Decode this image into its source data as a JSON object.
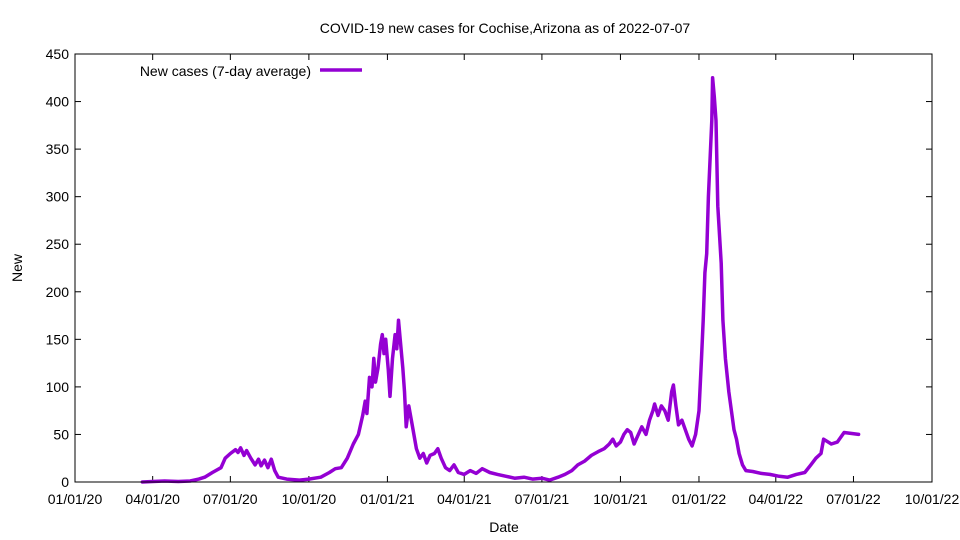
{
  "chart_data": {
    "type": "line",
    "title": "COVID-19 new cases for Cochise,Arizona as of 2022-07-07",
    "xlabel": "Date",
    "ylabel": "New",
    "xlim": [
      "2020-01-01",
      "2022-10-01"
    ],
    "ylim": [
      0,
      450
    ],
    "x_ticks": [
      "01/01/20",
      "04/01/20",
      "07/01/20",
      "10/01/20",
      "01/01/21",
      "04/01/21",
      "07/01/21",
      "10/01/21",
      "01/01/22",
      "04/01/22",
      "07/01/22",
      "10/01/22"
    ],
    "x_tick_dates": [
      "2020-01-01",
      "2020-04-01",
      "2020-07-01",
      "2020-10-01",
      "2021-01-01",
      "2021-04-01",
      "2021-07-01",
      "2021-10-01",
      "2022-01-01",
      "2022-04-01",
      "2022-07-01",
      "2022-10-01"
    ],
    "y_ticks": [
      "0",
      "50",
      "100",
      "150",
      "200",
      "250",
      "300",
      "350",
      "400",
      "450"
    ],
    "grid": false,
    "legend_position": "top-left",
    "series": [
      {
        "name": "New cases (7-day average)",
        "color": "#9400d3",
        "points": [
          [
            "2020-03-20",
            0
          ],
          [
            "2020-04-01",
            0.5
          ],
          [
            "2020-04-15",
            1
          ],
          [
            "2020-05-01",
            0.5
          ],
          [
            "2020-05-15",
            1
          ],
          [
            "2020-05-25",
            3
          ],
          [
            "2020-06-01",
            5
          ],
          [
            "2020-06-10",
            10
          ],
          [
            "2020-06-20",
            15
          ],
          [
            "2020-06-25",
            25
          ],
          [
            "2020-07-01",
            30
          ],
          [
            "2020-07-07",
            34
          ],
          [
            "2020-07-10",
            31
          ],
          [
            "2020-07-13",
            36
          ],
          [
            "2020-07-17",
            28
          ],
          [
            "2020-07-20",
            33
          ],
          [
            "2020-07-25",
            25
          ],
          [
            "2020-07-30",
            18
          ],
          [
            "2020-08-03",
            24
          ],
          [
            "2020-08-06",
            17
          ],
          [
            "2020-08-10",
            23
          ],
          [
            "2020-08-14",
            15
          ],
          [
            "2020-08-18",
            24
          ],
          [
            "2020-08-22",
            12
          ],
          [
            "2020-08-26",
            5
          ],
          [
            "2020-09-05",
            3
          ],
          [
            "2020-09-20",
            2
          ],
          [
            "2020-10-01",
            3
          ],
          [
            "2020-10-15",
            5
          ],
          [
            "2020-10-25",
            10
          ],
          [
            "2020-11-01",
            14
          ],
          [
            "2020-11-08",
            15
          ],
          [
            "2020-11-15",
            25
          ],
          [
            "2020-11-22",
            40
          ],
          [
            "2020-11-28",
            50
          ],
          [
            "2020-12-03",
            70
          ],
          [
            "2020-12-06",
            85
          ],
          [
            "2020-12-08",
            72
          ],
          [
            "2020-12-11",
            110
          ],
          [
            "2020-12-14",
            100
          ],
          [
            "2020-12-16",
            130
          ],
          [
            "2020-12-18",
            105
          ],
          [
            "2020-12-21",
            120
          ],
          [
            "2020-12-24",
            145
          ],
          [
            "2020-12-26",
            155
          ],
          [
            "2020-12-28",
            135
          ],
          [
            "2020-12-30",
            150
          ],
          [
            "2021-01-02",
            118
          ],
          [
            "2021-01-04",
            90
          ],
          [
            "2021-01-07",
            130
          ],
          [
            "2021-01-10",
            155
          ],
          [
            "2021-01-12",
            140
          ],
          [
            "2021-01-14",
            170
          ],
          [
            "2021-01-16",
            150
          ],
          [
            "2021-01-19",
            120
          ],
          [
            "2021-01-21",
            95
          ],
          [
            "2021-01-23",
            58
          ],
          [
            "2021-01-26",
            80
          ],
          [
            "2021-01-30",
            60
          ],
          [
            "2021-02-04",
            35
          ],
          [
            "2021-02-08",
            25
          ],
          [
            "2021-02-12",
            30
          ],
          [
            "2021-02-16",
            20
          ],
          [
            "2021-02-20",
            28
          ],
          [
            "2021-02-25",
            30
          ],
          [
            "2021-03-01",
            35
          ],
          [
            "2021-03-05",
            25
          ],
          [
            "2021-03-10",
            15
          ],
          [
            "2021-03-15",
            12
          ],
          [
            "2021-03-20",
            18
          ],
          [
            "2021-03-25",
            10
          ],
          [
            "2021-04-01",
            8
          ],
          [
            "2021-04-08",
            12
          ],
          [
            "2021-04-15",
            9
          ],
          [
            "2021-04-22",
            14
          ],
          [
            "2021-05-01",
            10
          ],
          [
            "2021-05-10",
            8
          ],
          [
            "2021-05-20",
            6
          ],
          [
            "2021-05-30",
            4
          ],
          [
            "2021-06-10",
            5
          ],
          [
            "2021-06-20",
            3
          ],
          [
            "2021-07-01",
            4
          ],
          [
            "2021-07-10",
            2
          ],
          [
            "2021-07-20",
            5
          ],
          [
            "2021-07-28",
            8
          ],
          [
            "2021-08-05",
            12
          ],
          [
            "2021-08-12",
            18
          ],
          [
            "2021-08-20",
            22
          ],
          [
            "2021-08-28",
            28
          ],
          [
            "2021-09-05",
            32
          ],
          [
            "2021-09-12",
            35
          ],
          [
            "2021-09-18",
            40
          ],
          [
            "2021-09-22",
            45
          ],
          [
            "2021-09-26",
            38
          ],
          [
            "2021-10-01",
            42
          ],
          [
            "2021-10-05",
            50
          ],
          [
            "2021-10-09",
            55
          ],
          [
            "2021-10-13",
            52
          ],
          [
            "2021-10-17",
            40
          ],
          [
            "2021-10-21",
            48
          ],
          [
            "2021-10-26",
            58
          ],
          [
            "2021-10-31",
            50
          ],
          [
            "2021-11-04",
            65
          ],
          [
            "2021-11-08",
            75
          ],
          [
            "2021-11-10",
            82
          ],
          [
            "2021-11-14",
            70
          ],
          [
            "2021-11-18",
            80
          ],
          [
            "2021-11-22",
            75
          ],
          [
            "2021-11-26",
            65
          ],
          [
            "2021-11-30",
            95
          ],
          [
            "2021-12-02",
            102
          ],
          [
            "2021-12-05",
            80
          ],
          [
            "2021-12-08",
            60
          ],
          [
            "2021-12-12",
            65
          ],
          [
            "2021-12-16",
            55
          ],
          [
            "2021-12-20",
            45
          ],
          [
            "2021-12-24",
            38
          ],
          [
            "2021-12-28",
            50
          ],
          [
            "2022-01-01",
            75
          ],
          [
            "2022-01-04",
            130
          ],
          [
            "2022-01-06",
            170
          ],
          [
            "2022-01-08",
            220
          ],
          [
            "2022-01-10",
            240
          ],
          [
            "2022-01-12",
            300
          ],
          [
            "2022-01-14",
            340
          ],
          [
            "2022-01-16",
            380
          ],
          [
            "2022-01-17",
            425
          ],
          [
            "2022-01-19",
            405
          ],
          [
            "2022-01-21",
            380
          ],
          [
            "2022-01-23",
            290
          ],
          [
            "2022-01-25",
            260
          ],
          [
            "2022-01-27",
            230
          ],
          [
            "2022-01-29",
            170
          ],
          [
            "2022-02-01",
            130
          ],
          [
            "2022-02-05",
            95
          ],
          [
            "2022-02-08",
            75
          ],
          [
            "2022-02-11",
            55
          ],
          [
            "2022-02-14",
            45
          ],
          [
            "2022-02-17",
            30
          ],
          [
            "2022-02-21",
            18
          ],
          [
            "2022-02-25",
            12
          ],
          [
            "2022-03-05",
            11
          ],
          [
            "2022-03-15",
            9
          ],
          [
            "2022-03-25",
            8
          ],
          [
            "2022-04-05",
            6
          ],
          [
            "2022-04-15",
            5
          ],
          [
            "2022-04-25",
            8
          ],
          [
            "2022-05-05",
            10
          ],
          [
            "2022-05-12",
            18
          ],
          [
            "2022-05-18",
            25
          ],
          [
            "2022-05-24",
            30
          ],
          [
            "2022-05-27",
            45
          ],
          [
            "2022-06-05",
            40
          ],
          [
            "2022-06-12",
            42
          ],
          [
            "2022-06-20",
            52
          ],
          [
            "2022-07-07",
            50
          ]
        ]
      }
    ]
  }
}
